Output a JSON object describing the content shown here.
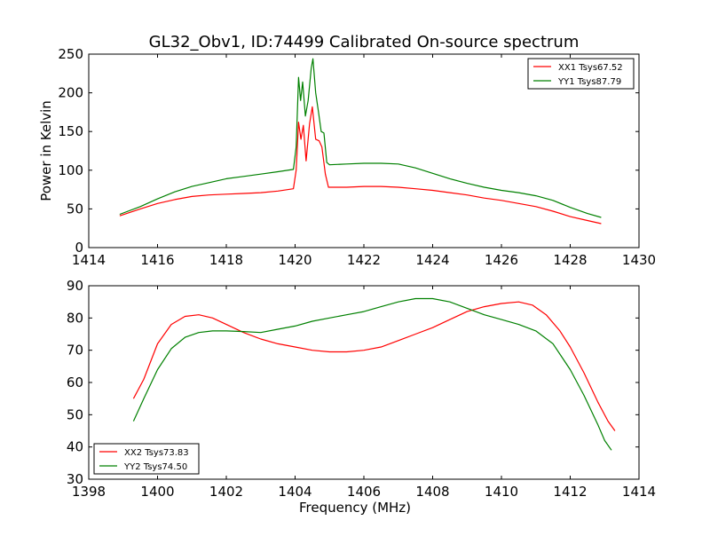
{
  "figure": {
    "title": "GL32_Obv1, ID:74499 Calibrated On-source spectrum"
  },
  "colors": {
    "xx": "#ff0000",
    "yy": "#008000"
  },
  "chart_data": [
    {
      "type": "line",
      "ylabel": "Power in Kelvin",
      "xlabel": "",
      "xlim": [
        1414,
        1430
      ],
      "ylim": [
        0,
        250
      ],
      "xticks": [
        1414,
        1416,
        1418,
        1420,
        1422,
        1424,
        1426,
        1428,
        1430
      ],
      "yticks": [
        0,
        50,
        100,
        150,
        200,
        250
      ],
      "grid": false,
      "legend_position": "top-right",
      "series": [
        {
          "name": "XX1 Tsys67.52",
          "color": "#ff0000",
          "points": [
            [
              1414.9,
              41
            ],
            [
              1415.5,
              50
            ],
            [
              1416.0,
              57
            ],
            [
              1416.5,
              62
            ],
            [
              1417.0,
              66
            ],
            [
              1417.5,
              68
            ],
            [
              1418.0,
              69
            ],
            [
              1418.5,
              70
            ],
            [
              1419.0,
              71
            ],
            [
              1419.5,
              73
            ],
            [
              1419.95,
              76
            ],
            [
              1420.03,
              100
            ],
            [
              1420.1,
              162
            ],
            [
              1420.17,
              140
            ],
            [
              1420.24,
              158
            ],
            [
              1420.32,
              112
            ],
            [
              1420.42,
              160
            ],
            [
              1420.5,
              182
            ],
            [
              1420.6,
              140
            ],
            [
              1420.7,
              138
            ],
            [
              1420.78,
              130
            ],
            [
              1420.88,
              95
            ],
            [
              1420.97,
              78
            ],
            [
              1421.5,
              78
            ],
            [
              1422.0,
              79
            ],
            [
              1422.5,
              79
            ],
            [
              1423.0,
              78
            ],
            [
              1423.5,
              76
            ],
            [
              1424.0,
              74
            ],
            [
              1424.5,
              71
            ],
            [
              1425.0,
              68
            ],
            [
              1425.5,
              64
            ],
            [
              1426.0,
              61
            ],
            [
              1426.5,
              57
            ],
            [
              1427.0,
              53
            ],
            [
              1427.5,
              47
            ],
            [
              1428.0,
              40
            ],
            [
              1428.5,
              35
            ],
            [
              1428.9,
              31
            ]
          ]
        },
        {
          "name": "YY1 Tsys87.79",
          "color": "#008000",
          "points": [
            [
              1414.9,
              43
            ],
            [
              1415.5,
              53
            ],
            [
              1416.0,
              63
            ],
            [
              1416.5,
              72
            ],
            [
              1417.0,
              79
            ],
            [
              1417.5,
              84
            ],
            [
              1418.0,
              89
            ],
            [
              1418.5,
              92
            ],
            [
              1419.0,
              95
            ],
            [
              1419.5,
              98
            ],
            [
              1419.95,
              101
            ],
            [
              1420.03,
              130
            ],
            [
              1420.1,
              220
            ],
            [
              1420.16,
              190
            ],
            [
              1420.22,
              214
            ],
            [
              1420.3,
              170
            ],
            [
              1420.38,
              190
            ],
            [
              1420.47,
              232
            ],
            [
              1420.52,
              244
            ],
            [
              1420.6,
              200
            ],
            [
              1420.68,
              175
            ],
            [
              1420.76,
              150
            ],
            [
              1420.84,
              148
            ],
            [
              1420.92,
              110
            ],
            [
              1421.0,
              107
            ],
            [
              1421.5,
              108
            ],
            [
              1422.0,
              109
            ],
            [
              1422.5,
              109
            ],
            [
              1423.0,
              108
            ],
            [
              1423.5,
              103
            ],
            [
              1424.0,
              96
            ],
            [
              1424.5,
              89
            ],
            [
              1425.0,
              83
            ],
            [
              1425.5,
              78
            ],
            [
              1426.0,
              74
            ],
            [
              1426.5,
              71
            ],
            [
              1427.0,
              67
            ],
            [
              1427.5,
              61
            ],
            [
              1428.0,
              52
            ],
            [
              1428.5,
              44
            ],
            [
              1428.9,
              39
            ]
          ]
        }
      ]
    },
    {
      "type": "line",
      "ylabel": "",
      "xlabel": "Frequency (MHz)",
      "xlim": [
        1398,
        1414
      ],
      "ylim": [
        30,
        90
      ],
      "xticks": [
        1398,
        1400,
        1402,
        1404,
        1406,
        1408,
        1410,
        1412,
        1414
      ],
      "yticks": [
        30,
        40,
        50,
        60,
        70,
        80,
        90
      ],
      "grid": false,
      "legend_position": "bottom-left",
      "series": [
        {
          "name": "XX2 Tsys73.83",
          "color": "#ff0000",
          "points": [
            [
              1399.3,
              55
            ],
            [
              1399.6,
              61
            ],
            [
              1400.0,
              72
            ],
            [
              1400.4,
              78
            ],
            [
              1400.8,
              80.5
            ],
            [
              1401.2,
              81
            ],
            [
              1401.6,
              80
            ],
            [
              1402.0,
              78
            ],
            [
              1402.5,
              75.5
            ],
            [
              1403.0,
              73.5
            ],
            [
              1403.5,
              72
            ],
            [
              1404.0,
              71
            ],
            [
              1404.5,
              70
            ],
            [
              1405.0,
              69.5
            ],
            [
              1405.5,
              69.5
            ],
            [
              1406.0,
              70
            ],
            [
              1406.5,
              71
            ],
            [
              1407.0,
              73
            ],
            [
              1407.5,
              75
            ],
            [
              1408.0,
              77
            ],
            [
              1408.5,
              79.5
            ],
            [
              1409.0,
              82
            ],
            [
              1409.5,
              83.5
            ],
            [
              1410.0,
              84.5
            ],
            [
              1410.5,
              85
            ],
            [
              1410.9,
              84
            ],
            [
              1411.3,
              81
            ],
            [
              1411.7,
              76
            ],
            [
              1412.0,
              71
            ],
            [
              1412.4,
              63
            ],
            [
              1412.8,
              54
            ],
            [
              1413.1,
              48
            ],
            [
              1413.3,
              45
            ]
          ]
        },
        {
          "name": "YY2 Tsys74.50",
          "color": "#008000",
          "points": [
            [
              1399.3,
              48
            ],
            [
              1399.6,
              55
            ],
            [
              1400.0,
              64
            ],
            [
              1400.4,
              70.5
            ],
            [
              1400.8,
              74
            ],
            [
              1401.2,
              75.5
            ],
            [
              1401.6,
              76
            ],
            [
              1402.0,
              76
            ],
            [
              1402.5,
              75.8
            ],
            [
              1403.0,
              75.5
            ],
            [
              1403.5,
              76.5
            ],
            [
              1404.0,
              77.5
            ],
            [
              1404.5,
              79
            ],
            [
              1405.0,
              80
            ],
            [
              1405.5,
              81
            ],
            [
              1406.0,
              82
            ],
            [
              1406.5,
              83.5
            ],
            [
              1407.0,
              85
            ],
            [
              1407.5,
              86
            ],
            [
              1408.0,
              86
            ],
            [
              1408.5,
              85
            ],
            [
              1409.0,
              83
            ],
            [
              1409.5,
              81
            ],
            [
              1410.0,
              79.5
            ],
            [
              1410.5,
              78
            ],
            [
              1411.0,
              76
            ],
            [
              1411.5,
              72
            ],
            [
              1412.0,
              64
            ],
            [
              1412.4,
              56
            ],
            [
              1412.8,
              47
            ],
            [
              1413.0,
              42
            ],
            [
              1413.2,
              39
            ]
          ]
        }
      ]
    }
  ]
}
